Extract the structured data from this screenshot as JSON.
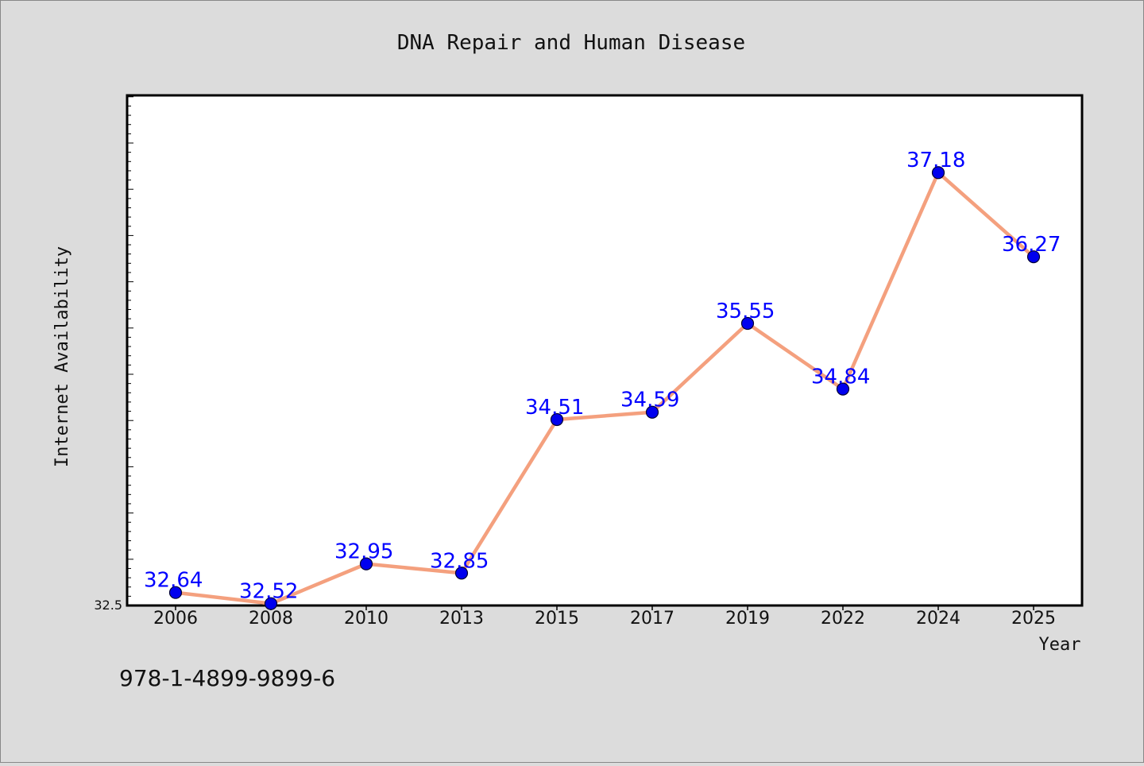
{
  "chart_data": {
    "type": "line",
    "title": "DNA Repair and Human Disease",
    "xlabel": "Year",
    "ylabel": "Internet Availability",
    "categories": [
      "2006",
      "2008",
      "2010",
      "2013",
      "2015",
      "2017",
      "2019",
      "2022",
      "2024",
      "2025"
    ],
    "series": [
      {
        "values": [
          32.64,
          32.52,
          32.95,
          32.85,
          34.51,
          34.59,
          35.55,
          34.84,
          37.18,
          36.27
        ],
        "labels": [
          "32.64",
          "32.52",
          "32.95",
          "32.85",
          "34.51",
          "34.59",
          "35.55",
          "34.84",
          "37.18",
          "36.27"
        ]
      }
    ],
    "ylim": [
      32.5,
      38.0
    ],
    "y_tick_labels": [
      "32.5"
    ],
    "grid": false,
    "line_color": "#f4a07e",
    "marker_color": "#0000ee",
    "label_color": "#0000ff"
  },
  "footer_text": "978-1-4899-9899-6"
}
